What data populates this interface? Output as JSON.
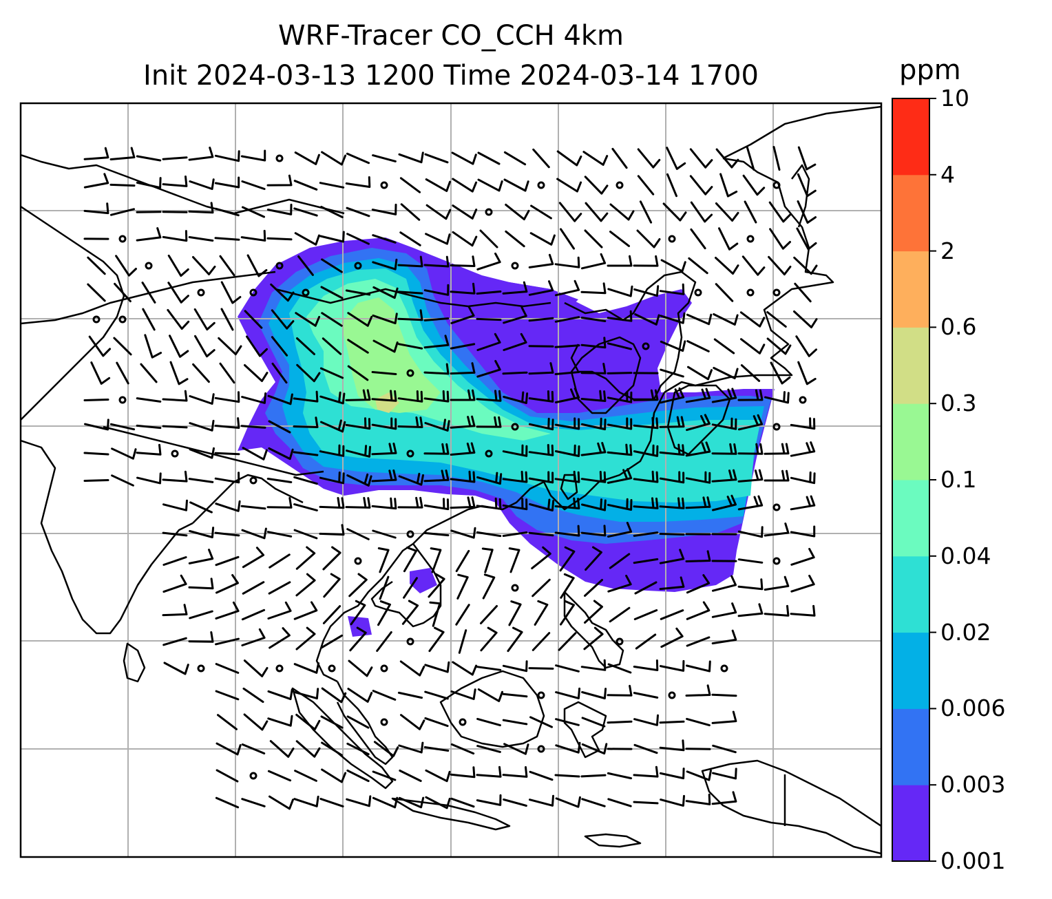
{
  "title": {
    "line1": "WRF-Tracer CO_CCH 4km",
    "line2": "Init 2024-03-13 1200 Time 2024-03-14 1700"
  },
  "colorbar": {
    "unit": "ppm",
    "levels": [
      "0.001",
      "0.003",
      "0.006",
      "0.02",
      "0.04",
      "0.1",
      "0.3",
      "0.6",
      "2",
      "4",
      "10"
    ],
    "colors": [
      "#6528f6",
      "#3273f3",
      "#03b0e6",
      "#2ee0d4",
      "#6bfbbf",
      "#99f893",
      "#d1de86",
      "#feaf5c",
      "#fe7338",
      "#fe2c16"
    ]
  },
  "map": {
    "frame_color": "#000000",
    "gridline_color": "#b0b0b0",
    "coastline_color": "#000000",
    "wind_barbs": "black"
  }
}
